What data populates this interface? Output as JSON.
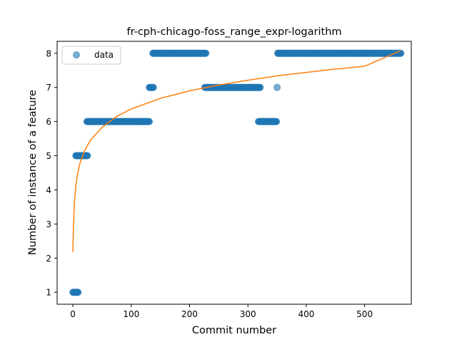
{
  "chart_data": {
    "type": "scatter",
    "title": "fr-cph-chicago-foss_range_expr-logarithm",
    "xlabel": "Commit number",
    "ylabel": "Number of instance of a feature",
    "xlim": [
      -27,
      580
    ],
    "ylim": [
      0.65,
      8.35
    ],
    "xticks": [
      0,
      100,
      200,
      300,
      400,
      500
    ],
    "yticks": [
      1,
      2,
      3,
      4,
      5,
      6,
      7,
      8
    ],
    "grid": false,
    "legend_position": "upper-left",
    "colors": {
      "data": "#1f77b4",
      "fit": "#ff7f0e",
      "axes": "#000000"
    },
    "series": [
      {
        "name": "data",
        "kind": "points",
        "segments": [
          {
            "y": 1,
            "x_start": 0,
            "x_end": 9,
            "step": 1
          },
          {
            "y": 5,
            "x_start": 5,
            "x_end": 25,
            "step": 1
          },
          {
            "y": 6,
            "x_start": 24,
            "x_end": 131,
            "step": 1
          },
          {
            "y": 7,
            "x_start": 131,
            "x_end": 138,
            "step": 1
          },
          {
            "y": 8,
            "x_start": 137,
            "x_end": 228,
            "step": 1
          },
          {
            "y": 7,
            "x_start": 226,
            "x_end": 321,
            "step": 1
          },
          {
            "y": 6,
            "x_start": 318,
            "x_end": 349,
            "step": 1
          },
          {
            "y": 7,
            "x_start": 350,
            "x_end": 350,
            "step": 1
          },
          {
            "y": 8,
            "x_start": 351,
            "x_end": 562,
            "step": 1
          }
        ]
      },
      {
        "name": "",
        "kind": "curve",
        "x": [
          0,
          1,
          2,
          3,
          5,
          8,
          12,
          20,
          30,
          50,
          75,
          100,
          150,
          200,
          250,
          300,
          350,
          400,
          450,
          500,
          562
        ],
        "y": [
          2.18,
          2.95,
          3.4,
          3.71,
          4.11,
          4.46,
          4.77,
          5.15,
          5.45,
          5.83,
          6.15,
          6.37,
          6.68,
          6.9,
          7.07,
          7.21,
          7.34,
          7.44,
          7.54,
          7.62,
          8.08
        ]
      }
    ]
  }
}
